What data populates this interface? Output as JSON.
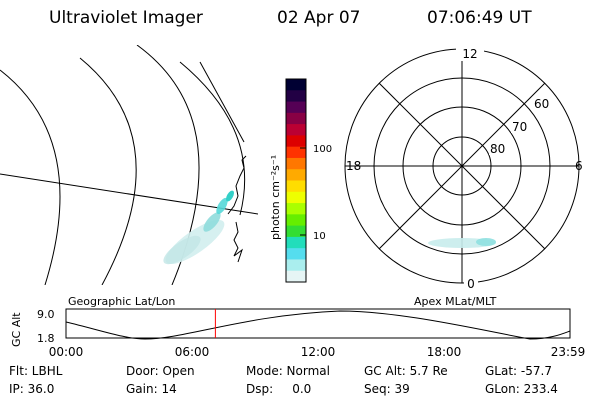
{
  "header": {
    "title": "Ultraviolet Imager",
    "date": "02 Apr 07",
    "time": "07:06:49 UT"
  },
  "left_panel": {
    "label": "Geographic Lat/Lon"
  },
  "right_panel": {
    "label": "Apex MLat/MLT",
    "mlt_labels": {
      "top": "12",
      "bottom": "0",
      "left": "18",
      "right": "6"
    },
    "lat_labels": [
      "60",
      "70",
      "80"
    ]
  },
  "colorbar": {
    "unit": "photon cm⁻²s⁻¹",
    "ticks": [
      "100",
      "10"
    ],
    "colors": [
      "#000033",
      "#220044",
      "#550055",
      "#880044",
      "#bb0033",
      "#dd0000",
      "#ff3300",
      "#ff7700",
      "#ffaa00",
      "#ffdd00",
      "#eeff00",
      "#aaff00",
      "#66ee00",
      "#33dd33",
      "#22ddbb",
      "#55ddee",
      "#aaeeee",
      "#e6f5f5"
    ]
  },
  "orbit_plot": {
    "ylabel": "GC Alt",
    "yticks": [
      "9.0",
      "1.8"
    ],
    "xticks": [
      "00:00",
      "06:00",
      "12:00",
      "18:00",
      "23:59"
    ],
    "current_time_fraction": 0.2964
  },
  "info": {
    "flt": "Flt: LBHL",
    "ip": "IP: 36.0",
    "door": "Door: Open",
    "gain": "Gain: 14",
    "mode": "Mode: Normal",
    "dsp": "Dsp:     0.0",
    "gcalt": "GC Alt: 5.7 Re",
    "seq": "Seq: 39",
    "glat": "GLat: -57.7",
    "glon": "GLon: 233.4"
  }
}
